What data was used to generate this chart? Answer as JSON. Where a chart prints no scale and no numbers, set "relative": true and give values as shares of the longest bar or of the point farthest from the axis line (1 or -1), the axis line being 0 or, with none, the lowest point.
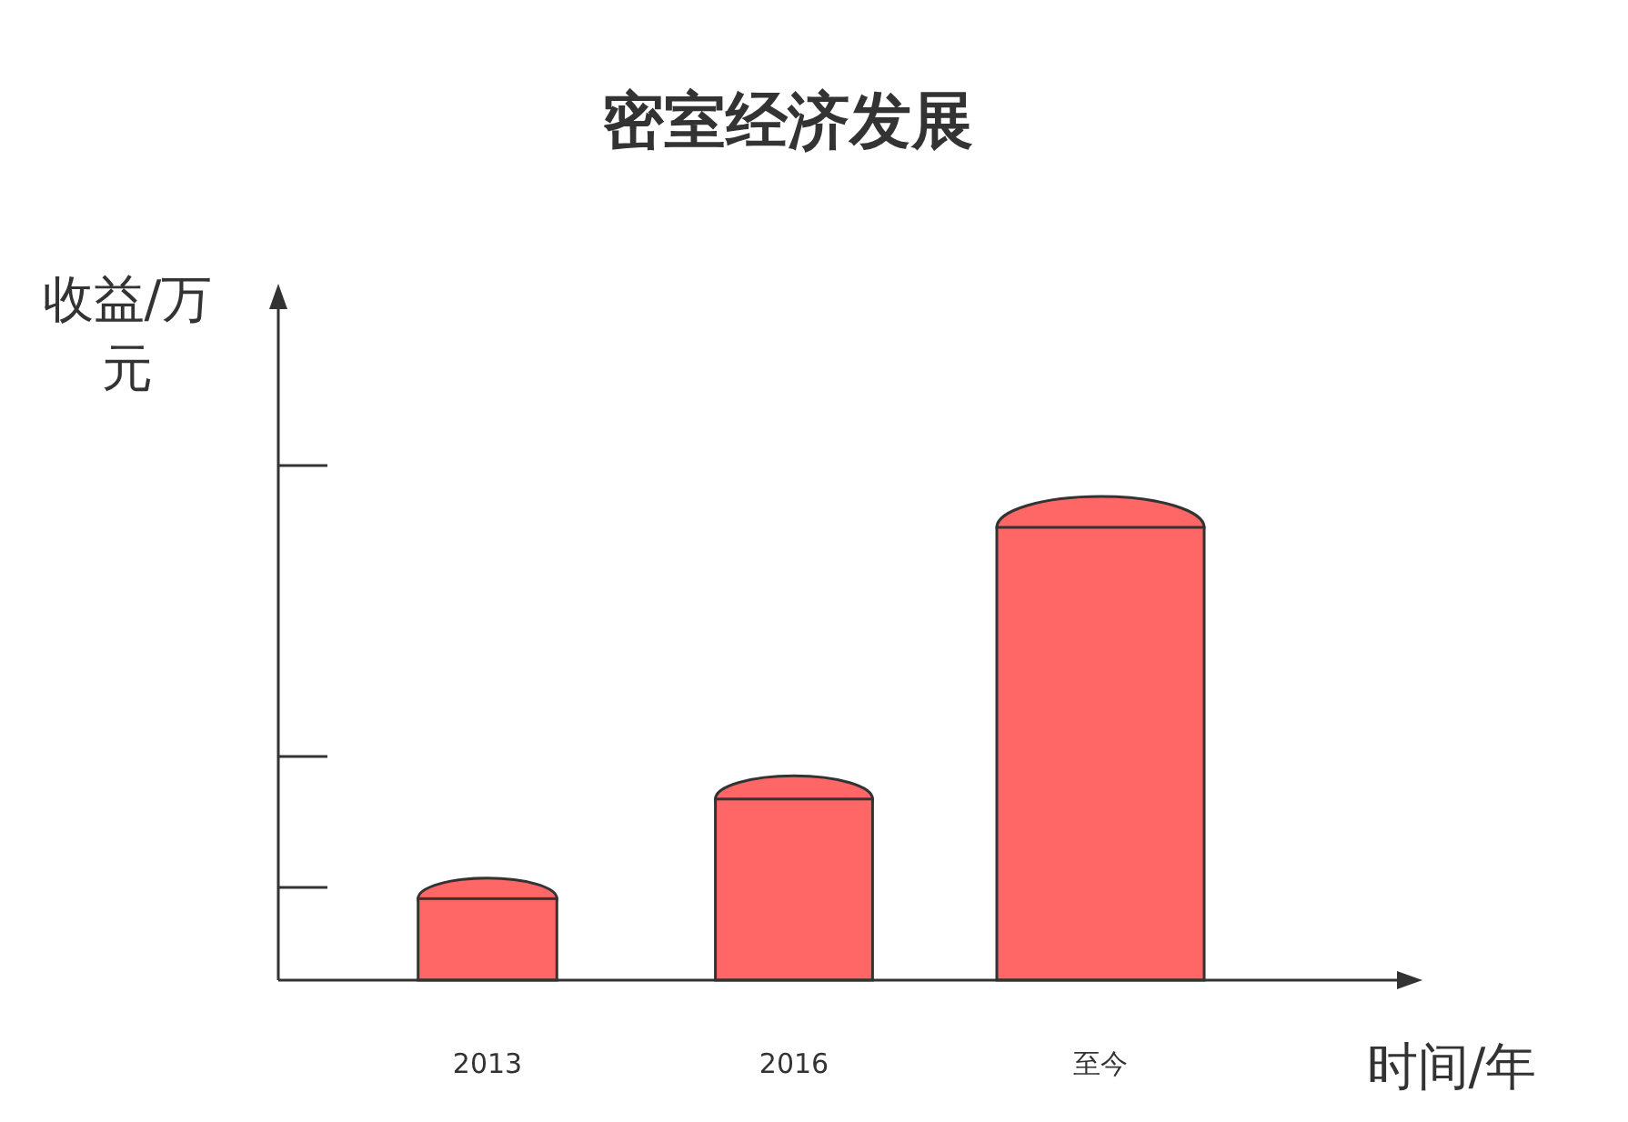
{
  "chart_data": {
    "type": "bar",
    "title": "密室经济发展",
    "xlabel": "时间/年",
    "ylabel": "收益/万元",
    "categories": [
      "2013",
      "2016",
      "至今"
    ],
    "values": [
      0.18,
      0.4,
      1
    ],
    "color": "#ff6666",
    "relative": true
  }
}
